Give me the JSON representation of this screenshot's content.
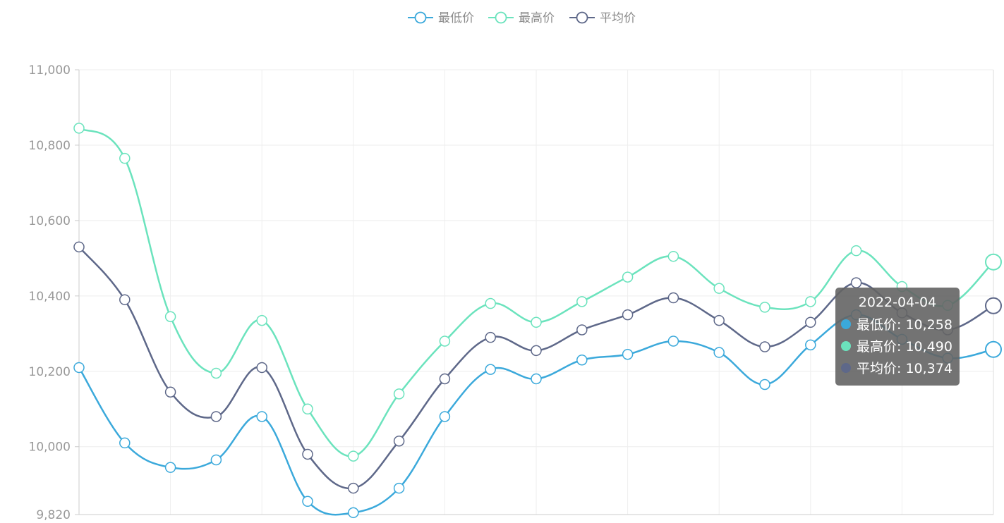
{
  "legend": [
    {
      "name": "最低价",
      "color": "#3ba9db"
    },
    {
      "name": "最高价",
      "color": "#6be3bd"
    },
    {
      "name": "平均价",
      "color": "#5e6889"
    }
  ],
  "tooltip": {
    "date": "2022-04-04",
    "rows": [
      {
        "label": "最低价: 10,258",
        "color": "#3ba9db"
      },
      {
        "label": "最高价: 10,490",
        "color": "#6be3bd"
      },
      {
        "label": "平均价: 10,374",
        "color": "#5e6889"
      }
    ]
  },
  "chart_data": {
    "type": "line",
    "smooth": true,
    "ylim": [
      9820,
      11000
    ],
    "yticks": [
      9820,
      10000,
      10200,
      10400,
      10600,
      10800,
      11000
    ],
    "ytick_labels": [
      "9,820",
      "10,000",
      "10,200",
      "10,400",
      "10,600",
      "10,800",
      "11,000"
    ],
    "grid": true,
    "legend_position": "top-center",
    "point_count": 21,
    "series": [
      {
        "name": "最低价",
        "color": "#3ba9db",
        "values": [
          10210,
          10010,
          9945,
          9965,
          10080,
          9855,
          9825,
          9890,
          10080,
          10205,
          10180,
          10230,
          10245,
          10280,
          10250,
          10165,
          10270,
          10350,
          10285,
          10235,
          10258
        ]
      },
      {
        "name": "最高价",
        "color": "#6be3bd",
        "values": [
          10845,
          10765,
          10345,
          10195,
          10335,
          10100,
          9975,
          10140,
          10280,
          10380,
          10330,
          10385,
          10450,
          10505,
          10420,
          10370,
          10385,
          10520,
          10425,
          10375,
          10490
        ]
      },
      {
        "name": "平均价",
        "color": "#5e6889",
        "values": [
          10530,
          10390,
          10145,
          10080,
          10210,
          9980,
          9890,
          10015,
          10180,
          10290,
          10255,
          10310,
          10350,
          10395,
          10335,
          10265,
          10330,
          10435,
          10355,
          10310,
          10374
        ]
      }
    ]
  }
}
